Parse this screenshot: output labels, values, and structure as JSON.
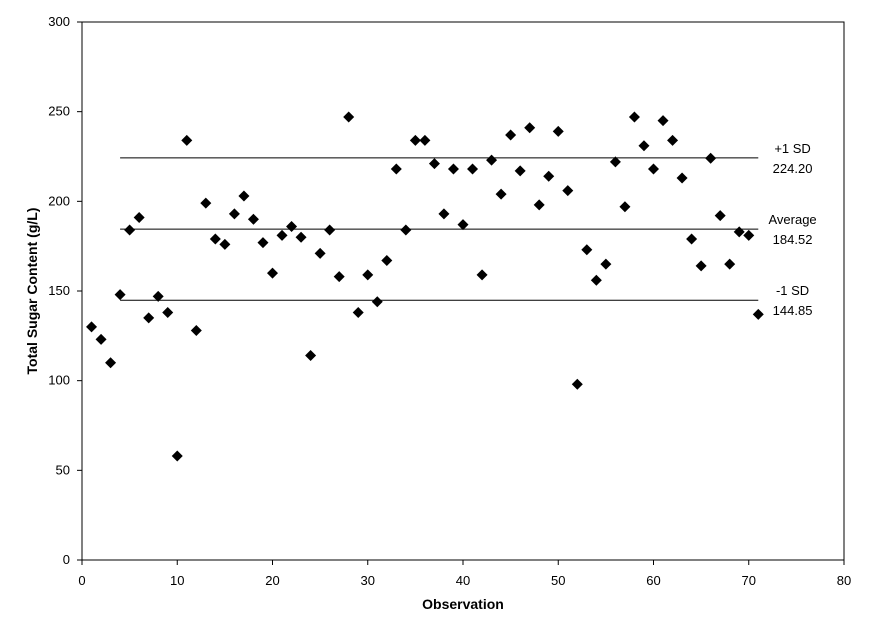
{
  "chart_data": {
    "type": "scatter",
    "title": "",
    "xlabel": "Observation",
    "ylabel": "Total Sugar Content (g/L)",
    "xlim": [
      0,
      80
    ],
    "ylim": [
      0,
      300
    ],
    "x_ticks": [
      "0",
      "10",
      "20",
      "30",
      "40",
      "50",
      "60",
      "70",
      "80"
    ],
    "y_ticks": [
      "0",
      "50",
      "100",
      "150",
      "200",
      "250",
      "300"
    ],
    "grid": false,
    "marker": "diamond",
    "marker_color": "#000000",
    "series": [
      {
        "x": [
          1,
          2,
          3,
          4,
          5,
          6,
          7,
          8,
          9,
          10,
          11,
          12,
          13,
          14,
          15,
          16,
          17,
          18,
          19,
          20,
          21,
          22,
          23,
          24,
          25,
          26,
          27,
          28,
          29,
          30,
          31,
          32,
          33,
          34,
          35,
          36,
          37,
          38,
          39,
          40,
          41,
          42,
          43,
          44,
          45,
          46,
          47,
          48,
          49,
          50,
          51,
          52,
          53,
          54,
          55,
          56,
          57,
          58,
          59,
          60,
          61,
          62,
          63,
          64,
          65,
          66,
          67,
          68,
          69,
          70,
          71
        ],
        "y": [
          130,
          123,
          110,
          148,
          184,
          191,
          135,
          147,
          138,
          58,
          234,
          128,
          199,
          179,
          176,
          193,
          203,
          190,
          177,
          160,
          181,
          186,
          180,
          114,
          171,
          184,
          158,
          247,
          138,
          159,
          144,
          167,
          218,
          184,
          234,
          234,
          221,
          193,
          218,
          187,
          218,
          159,
          223,
          204,
          237,
          217,
          241,
          198,
          214,
          239,
          206,
          98,
          173,
          156,
          165,
          222,
          197,
          247,
          231,
          218,
          245,
          234,
          213,
          179,
          164,
          224,
          192,
          165,
          183,
          181,
          137
        ]
      }
    ],
    "reference_lines": [
      {
        "value": 224.2,
        "label_top": "+1 SD",
        "label_bottom": "224.20"
      },
      {
        "value": 184.52,
        "label_top": "Average",
        "label_bottom": "184.52"
      },
      {
        "value": 144.85,
        "label_top": "-1 SD",
        "label_bottom": "144.85"
      }
    ]
  }
}
